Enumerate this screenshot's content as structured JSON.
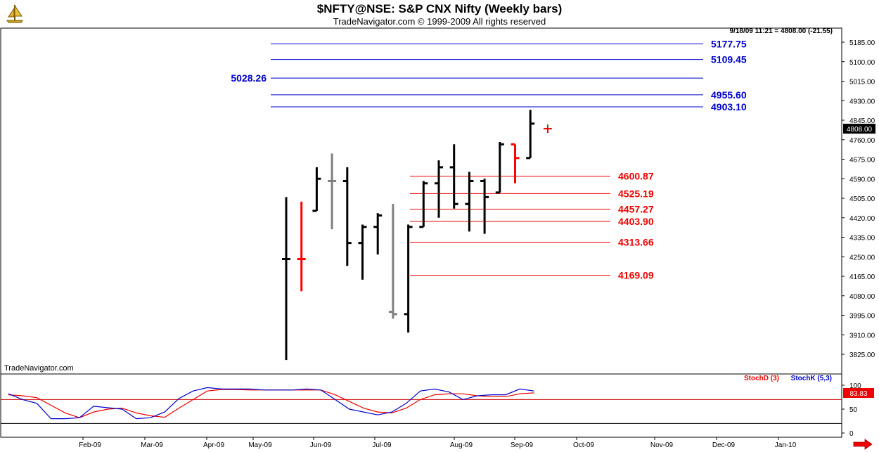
{
  "header": {
    "title": "$NFTY@NSE:  S&P CNX Nifty  (Weekly bars)",
    "subtitle": "TradeNavigator.com © 1999-2009 All rights reserved",
    "info": "9/18/09 11:21 = 4808.00 (-21.55)",
    "watermark": "TradeNavigator.com"
  },
  "colors": {
    "up": "#000000",
    "down": "#ff0000",
    "gray": "#808080",
    "blue_levels": "#0000cc",
    "red_levels": "#ee0000",
    "stochd": "#ee0000",
    "stochk": "#0000cc"
  },
  "chart_data": [
    {
      "type": "ohlc",
      "title": "$NFTY@NSE:  S&P CNX Nifty  (Weekly bars)",
      "y_ticks": [
        "5185.00",
        "5100.00",
        "5015.00",
        "4930.00",
        "4845.00",
        "4760.00",
        "4675.00",
        "4590.00",
        "4505.00",
        "4420.00",
        "4335.00",
        "4250.00",
        "4165.00",
        "4080.00",
        "3995.00",
        "3910.00",
        "3825.00"
      ],
      "ylim": [
        3800,
        5230
      ],
      "x_labels": [
        "Feb-09",
        "Mar-09",
        "Apr-09",
        "May-09",
        "Jun-09",
        "Jul-09",
        "Aug-09",
        "Sep-09",
        "Oct-09",
        "Nov-09",
        "Dec-09",
        "Jan-10"
      ],
      "last_price": "4808.00",
      "bars": [
        {
          "open": 4240,
          "high": 4510,
          "low": 3800,
          "close": 4240,
          "color": "up"
        },
        {
          "open": 4240,
          "high": 4490,
          "low": 4100,
          "close": 4240,
          "color": "down"
        },
        {
          "open": 4450,
          "high": 4640,
          "low": 4450,
          "close": 4590,
          "color": "up"
        },
        {
          "open": 4580,
          "high": 4700,
          "low": 4370,
          "close": 4580,
          "color": "gray"
        },
        {
          "open": 4580,
          "high": 4640,
          "low": 4210,
          "close": 4310,
          "color": "up"
        },
        {
          "open": 4310,
          "high": 4390,
          "low": 4150,
          "close": 4380,
          "color": "up"
        },
        {
          "open": 4380,
          "high": 4440,
          "low": 4260,
          "close": 4430,
          "color": "up"
        },
        {
          "open": 4010,
          "high": 4480,
          "low": 3980,
          "close": 4000,
          "color": "gray"
        },
        {
          "open": 4000,
          "high": 4390,
          "low": 3920,
          "close": 4380,
          "color": "up"
        },
        {
          "open": 4380,
          "high": 4580,
          "low": 4380,
          "close": 4570,
          "color": "up"
        },
        {
          "open": 4570,
          "high": 4670,
          "low": 4420,
          "close": 4640,
          "color": "up"
        },
        {
          "open": 4640,
          "high": 4740,
          "low": 4460,
          "close": 4480,
          "color": "up"
        },
        {
          "open": 4480,
          "high": 4620,
          "low": 4360,
          "close": 4580,
          "color": "up"
        },
        {
          "open": 4580,
          "high": 4590,
          "low": 4350,
          "close": 4510,
          "color": "up"
        },
        {
          "open": 4530,
          "high": 4750,
          "low": 4530,
          "close": 4740,
          "color": "up"
        },
        {
          "open": 4740,
          "high": 4740,
          "low": 4570,
          "close": 4680,
          "color": "down"
        },
        {
          "open": 4680,
          "high": 4890,
          "low": 4680,
          "close": 4830,
          "color": "up"
        }
      ],
      "current_marker": {
        "price": 4808
      },
      "blue_levels": [
        {
          "label": "5177.75",
          "value": 5177.75,
          "label_side": "right"
        },
        {
          "label": "5109.45",
          "value": 5109.45,
          "label_side": "right"
        },
        {
          "label": "5028.26",
          "value": 5028.26,
          "label_side": "left"
        },
        {
          "label": "4955.60",
          "value": 4955.6,
          "label_side": "right"
        },
        {
          "label": "4903.10",
          "value": 4903.1,
          "label_side": "right"
        }
      ],
      "red_levels": [
        {
          "label": "4600.87",
          "value": 4600.87
        },
        {
          "label": "4525.19",
          "value": 4525.19
        },
        {
          "label": "4457.27",
          "value": 4457.27
        },
        {
          "label": "4403.90",
          "value": 4403.9
        },
        {
          "label": "4313.66",
          "value": 4313.66
        },
        {
          "label": "4169.09",
          "value": 4169.09
        }
      ]
    },
    {
      "type": "line",
      "legend": [
        "StochD (3)",
        "StochK (5,3)"
      ],
      "y_ticks": [
        "100",
        "50",
        "0"
      ],
      "ylim": [
        0,
        100
      ],
      "current_value": "83.83",
      "series": [
        {
          "name": "StochD (3)",
          "color": "#ee0000",
          "values": [
            80,
            78,
            74,
            58,
            42,
            32,
            44,
            50,
            52,
            42,
            36,
            33,
            52,
            70,
            88,
            91,
            91,
            90,
            90,
            90,
            90,
            90,
            90,
            80,
            66,
            52,
            44,
            42,
            52,
            70,
            80,
            82,
            82,
            78,
            76,
            76,
            82,
            84
          ]
        },
        {
          "name": "StochK (5,3)",
          "color": "#0000cc",
          "values": [
            82,
            70,
            62,
            30,
            30,
            32,
            56,
            53,
            50,
            30,
            32,
            44,
            72,
            88,
            95,
            92,
            92,
            92,
            90,
            90,
            90,
            92,
            90,
            70,
            50,
            44,
            38,
            44,
            62,
            88,
            92,
            86,
            70,
            78,
            80,
            80,
            92,
            88
          ]
        }
      ]
    }
  ]
}
